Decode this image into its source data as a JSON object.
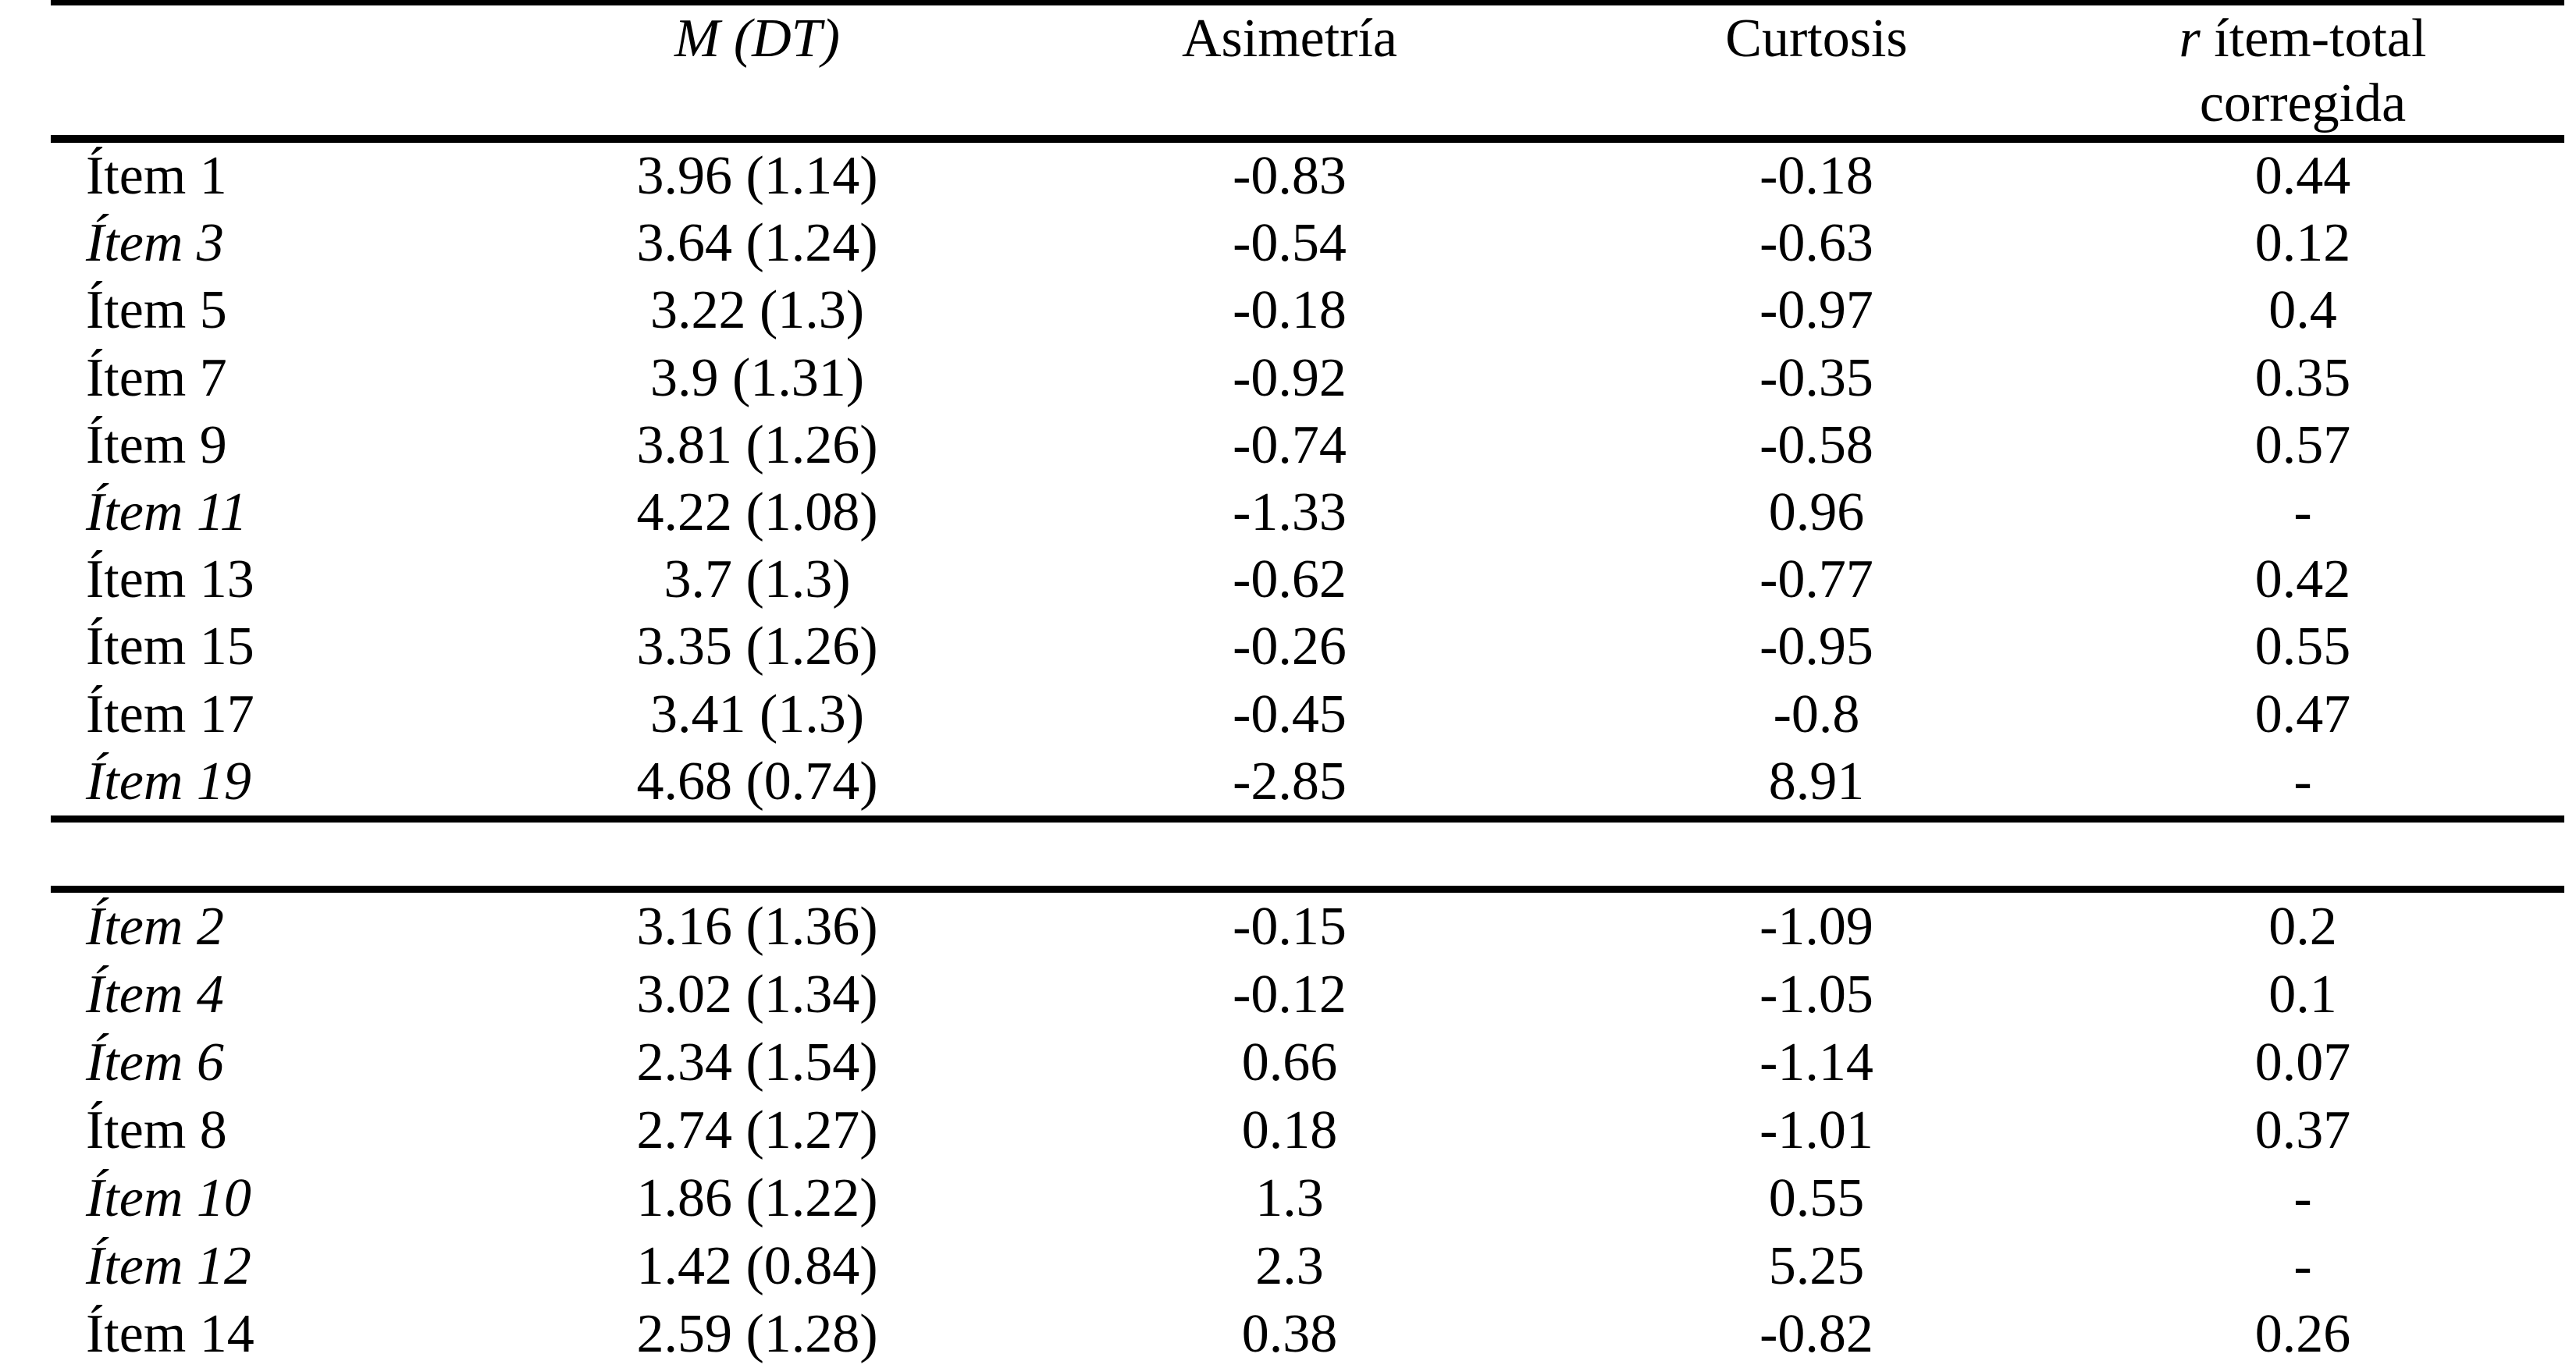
{
  "page": {
    "background_color": "#ffffff",
    "text_color": "#000000"
  },
  "table": {
    "header": {
      "label": "",
      "m": "M (DT)",
      "asimetria": "Asimetría",
      "curtosis": "Curtosis",
      "r": {
        "r": "r",
        "rest": " ítem-total",
        "line2": "corregida"
      }
    },
    "block1": [
      {
        "label": "Ítem 1",
        "italic": false,
        "m": "3.96 (1.14)",
        "asimetria": "-0.83",
        "curtosis": "-0.18",
        "r": "0.44"
      },
      {
        "label": "Ítem 3",
        "italic": true,
        "m": "3.64 (1.24)",
        "asimetria": "-0.54",
        "curtosis": "-0.63",
        "r": "0.12"
      },
      {
        "label": "Ítem 5",
        "italic": false,
        "m": "3.22 (1.3)",
        "asimetria": "-0.18",
        "curtosis": "-0.97",
        "r": "0.4"
      },
      {
        "label": "Ítem 7",
        "italic": false,
        "m": "3.9 (1.31)",
        "asimetria": "-0.92",
        "curtosis": "-0.35",
        "r": "0.35"
      },
      {
        "label": "Ítem 9",
        "italic": false,
        "m": "3.81 (1.26)",
        "asimetria": "-0.74",
        "curtosis": "-0.58",
        "r": "0.57"
      },
      {
        "label": "Ítem 11",
        "italic": true,
        "m": "4.22 (1.08)",
        "asimetria": "-1.33",
        "curtosis": "0.96",
        "r": "-"
      },
      {
        "label": "Ítem 13",
        "italic": false,
        "m": "3.7 (1.3)",
        "asimetria": "-0.62",
        "curtosis": "-0.77",
        "r": "0.42"
      },
      {
        "label": "Ítem 15",
        "italic": false,
        "m": "3.35 (1.26)",
        "asimetria": "-0.26",
        "curtosis": "-0.95",
        "r": "0.55"
      },
      {
        "label": "Ítem 17",
        "italic": false,
        "m": "3.41 (1.3)",
        "asimetria": "-0.45",
        "curtosis": "-0.8",
        "r": "0.47"
      },
      {
        "label": "Ítem 19",
        "italic": true,
        "m": "4.68 (0.74)",
        "asimetria": "-2.85",
        "curtosis": "8.91",
        "r": "-"
      }
    ],
    "block2": [
      {
        "label": "Ítem 2",
        "italic": true,
        "m": "3.16 (1.36)",
        "asimetria": "-0.15",
        "curtosis": "-1.09",
        "r": "0.2"
      },
      {
        "label": "Ítem 4",
        "italic": true,
        "m": "3.02 (1.34)",
        "asimetria": "-0.12",
        "curtosis": "-1.05",
        "r": "0.1"
      },
      {
        "label": "Ítem 6",
        "italic": true,
        "m": "2.34 (1.54)",
        "asimetria": "0.66",
        "curtosis": "-1.14",
        "r": "0.07"
      },
      {
        "label": "Ítem 8",
        "italic": false,
        "m": "2.74 (1.27)",
        "asimetria": "0.18",
        "curtosis": "-1.01",
        "r": "0.37"
      },
      {
        "label": "Ítem 10",
        "italic": true,
        "m": "1.86 (1.22)",
        "asimetria": "1.3",
        "curtosis": "0.55",
        "r": "-"
      },
      {
        "label": "Ítem 12",
        "italic": true,
        "m": "1.42 (0.84)",
        "asimetria": "2.3",
        "curtosis": "5.25",
        "r": "-"
      },
      {
        "label": "Ítem 14",
        "italic": false,
        "m": "2.59 (1.28)",
        "asimetria": "0.38",
        "curtosis": "-0.82",
        "r": "0.26"
      }
    ]
  }
}
